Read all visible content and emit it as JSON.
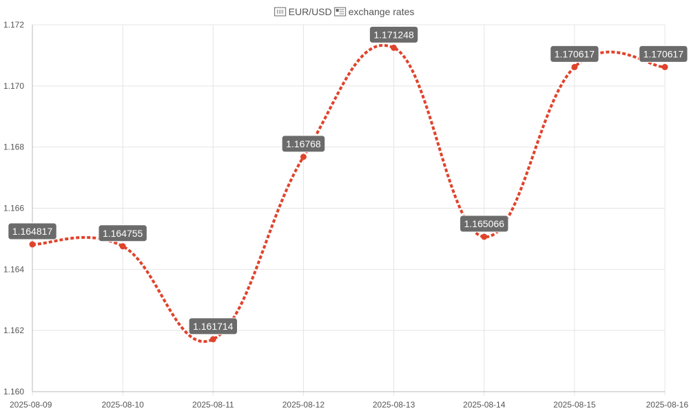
{
  "chart_data": {
    "type": "line",
    "title": "EUR/USD exchange rates",
    "title_parts": {
      "flag_left_icon": "eu-flag-icon",
      "pair": "EUR/USD",
      "flag_right_icon": "us-flag-icon",
      "rest": "exchange rates"
    },
    "xlabel": "",
    "ylabel": "",
    "x": [
      "2025-08-09",
      "2025-08-10",
      "2025-08-11",
      "2025-08-12",
      "2025-08-13",
      "2025-08-14",
      "2025-08-15",
      "2025-08-16"
    ],
    "series": [
      {
        "values": [
          1.164817,
          1.164755,
          1.161714,
          1.16768,
          1.171248,
          1.165066,
          1.170617,
          1.170617
        ],
        "labels": [
          "1.164817",
          "1.164755",
          "1.161714",
          "1.16768",
          "1.171248",
          "1.165066",
          "1.170617",
          "1.170617"
        ],
        "color": "#e0432b",
        "line_style": "dotted",
        "smooth": true
      }
    ],
    "ylim": [
      1.16,
      1.172
    ],
    "yticks": [
      "1.172",
      "1.170",
      "1.168",
      "1.166",
      "1.164",
      "1.162",
      "1.160"
    ],
    "ytick_values": [
      1.172,
      1.17,
      1.168,
      1.166,
      1.164,
      1.162,
      1.16
    ],
    "grid": true,
    "legend": "none",
    "label_box_color": "#6b6b6b"
  }
}
